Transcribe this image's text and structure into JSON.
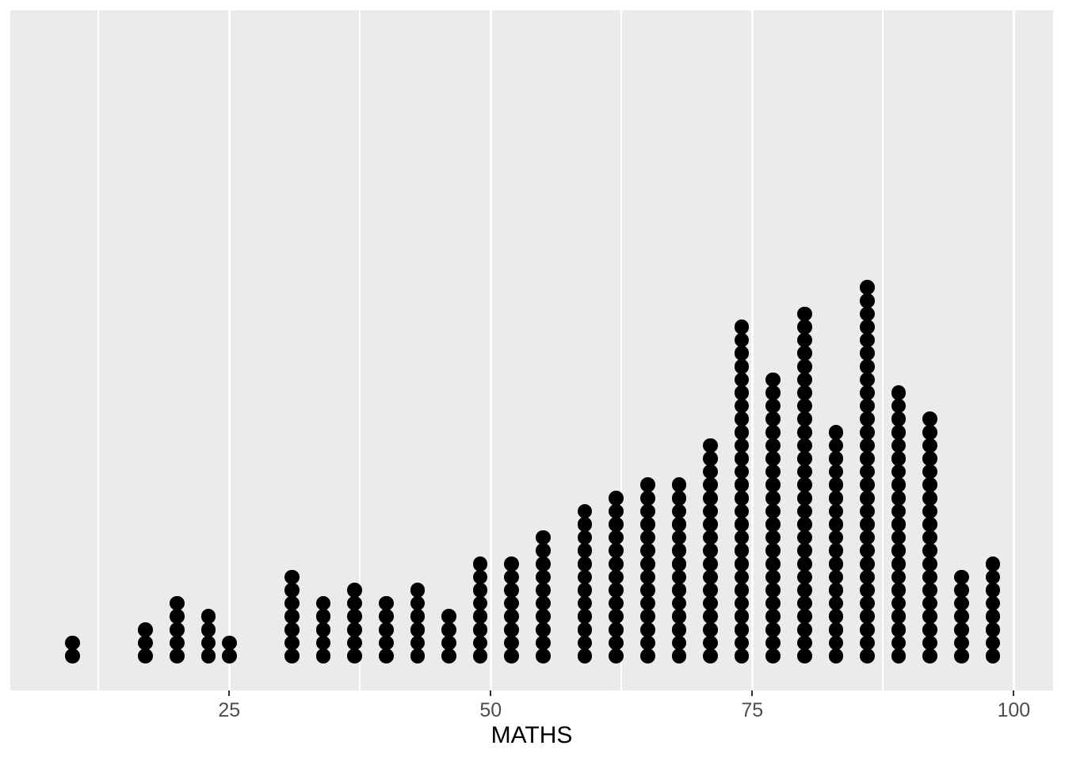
{
  "chart_data": {
    "type": "dotplot",
    "title": "",
    "xlabel": "MATHS",
    "ylabel": "",
    "x_ticks": [
      {
        "value": 25,
        "label": "25"
      },
      {
        "value": 50,
        "label": "50"
      },
      {
        "value": 75,
        "label": "75"
      },
      {
        "value": 100,
        "label": "100"
      }
    ],
    "x_minor_gridlines": [
      12.5,
      37.5,
      62.5,
      87.5
    ],
    "xlim": [
      4.1,
      103.8
    ],
    "grid": "vertical-only",
    "legend": "none",
    "theme": {
      "page_background": "#FFFFFF",
      "panel_background": "#EBEBEB",
      "grid_color": "#FFFFFF",
      "dot_color": "#000000",
      "axis_text_color": "#4D4D4D",
      "axis_title_color": "#000000",
      "tick_mark_color": "#333333"
    },
    "stacks": [
      {
        "x": 10,
        "count": 2
      },
      {
        "x": 17,
        "count": 3
      },
      {
        "x": 20,
        "count": 5
      },
      {
        "x": 23,
        "count": 4
      },
      {
        "x": 25,
        "count": 2
      },
      {
        "x": 31,
        "count": 7
      },
      {
        "x": 34,
        "count": 5
      },
      {
        "x": 37,
        "count": 6
      },
      {
        "x": 40,
        "count": 5
      },
      {
        "x": 43,
        "count": 6
      },
      {
        "x": 46,
        "count": 4
      },
      {
        "x": 49,
        "count": 8
      },
      {
        "x": 52,
        "count": 8
      },
      {
        "x": 55,
        "count": 10
      },
      {
        "x": 59,
        "count": 12
      },
      {
        "x": 62,
        "count": 13
      },
      {
        "x": 65,
        "count": 14
      },
      {
        "x": 68,
        "count": 14
      },
      {
        "x": 71,
        "count": 17
      },
      {
        "x": 74,
        "count": 26
      },
      {
        "x": 77,
        "count": 22
      },
      {
        "x": 80,
        "count": 27
      },
      {
        "x": 83,
        "count": 18
      },
      {
        "x": 86,
        "count": 29
      },
      {
        "x": 89,
        "count": 21
      },
      {
        "x": 92,
        "count": 19
      },
      {
        "x": 95,
        "count": 7
      },
      {
        "x": 98,
        "count": 8
      }
    ],
    "total_dots": 322
  }
}
